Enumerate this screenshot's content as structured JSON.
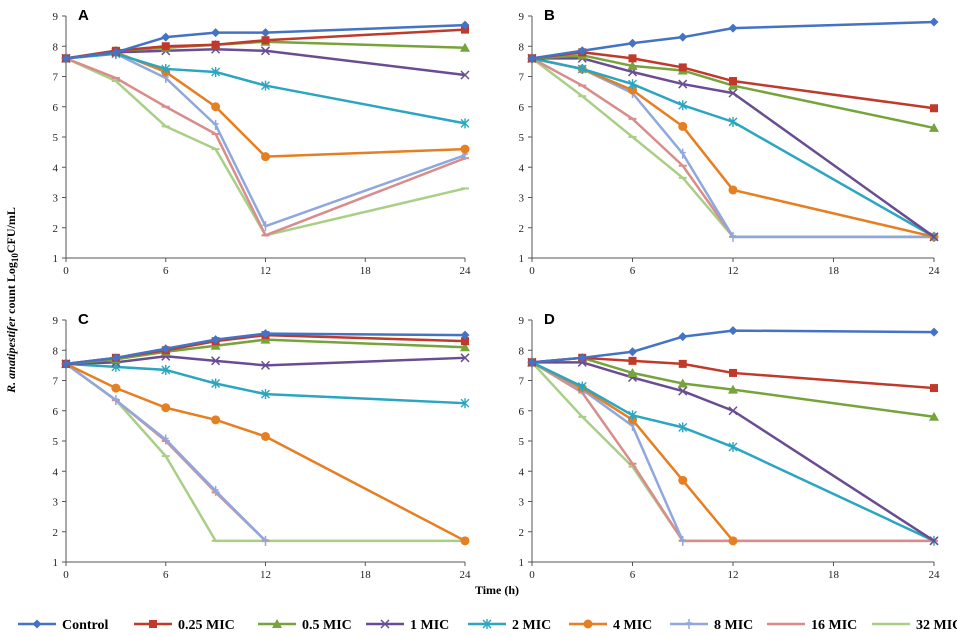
{
  "chart_data": {
    "type": "line",
    "ylabel_prefix": "R. anatipestifer",
    "ylabel_rest": " count Log",
    "ylabel_sub": "10",
    "ylabel_unit": "CFU/mL",
    "xlabel": "Time (h)",
    "x_ticks": [
      0,
      6,
      12,
      18,
      24
    ],
    "y_ticks": [
      1,
      2,
      3,
      4,
      5,
      6,
      7,
      8,
      9
    ],
    "xlim": [
      0,
      24
    ],
    "ylim": [
      1,
      9
    ],
    "series_styles": [
      {
        "name": "Control",
        "color": "#4472c4",
        "marker": "diamond"
      },
      {
        "name": "0.25 MIC",
        "color": "#c0392b",
        "marker": "square"
      },
      {
        "name": "0.5 MIC",
        "color": "#76a33a",
        "marker": "triangle"
      },
      {
        "name": "1 MIC",
        "color": "#6a4c93",
        "marker": "x"
      },
      {
        "name": "2 MIC",
        "color": "#2aa6c0",
        "marker": "star"
      },
      {
        "name": "4 MIC",
        "color": "#e67e22",
        "marker": "circle"
      },
      {
        "name": "8 MIC",
        "color": "#8fa8dc",
        "marker": "plus"
      },
      {
        "name": "16 MIC",
        "color": "#d98c8c",
        "marker": "dash"
      },
      {
        "name": "32 MIC",
        "color": "#a9cf86",
        "marker": "dash"
      }
    ],
    "panels": [
      {
        "label": "A",
        "x": [
          0,
          3,
          6,
          9,
          12,
          24
        ],
        "series": [
          {
            "name": "Control",
            "values": [
              7.6,
              7.8,
              8.3,
              8.45,
              8.45,
              8.7
            ]
          },
          {
            "name": "0.25 MIC",
            "values": [
              7.6,
              7.85,
              8.0,
              8.05,
              8.2,
              8.55
            ]
          },
          {
            "name": "0.5 MIC",
            "values": [
              7.6,
              7.85,
              7.95,
              8.05,
              8.15,
              7.95
            ]
          },
          {
            "name": "1 MIC",
            "values": [
              7.6,
              7.8,
              7.85,
              7.9,
              7.85,
              7.05
            ]
          },
          {
            "name": "2 MIC",
            "values": [
              7.6,
              7.75,
              7.25,
              7.15,
              6.7,
              5.45
            ]
          },
          {
            "name": "4 MIC",
            "values": [
              7.6,
              7.8,
              7.15,
              6.0,
              4.35,
              4.6
            ]
          },
          {
            "name": "8 MIC",
            "values": [
              7.6,
              7.75,
              6.95,
              5.4,
              2.05,
              4.4
            ]
          },
          {
            "name": "16 MIC",
            "values": [
              7.6,
              6.95,
              6.0,
              5.1,
              1.75,
              4.3
            ]
          },
          {
            "name": "32 MIC",
            "values": [
              7.6,
              6.85,
              5.35,
              4.6,
              1.75,
              3.3
            ]
          }
        ]
      },
      {
        "label": "B",
        "x": [
          0,
          3,
          6,
          9,
          12,
          24
        ],
        "series": [
          {
            "name": "Control",
            "values": [
              7.6,
              7.85,
              8.1,
              8.3,
              8.6,
              8.8
            ]
          },
          {
            "name": "0.25 MIC",
            "values": [
              7.6,
              7.8,
              7.6,
              7.3,
              6.85,
              5.95
            ]
          },
          {
            "name": "0.5 MIC",
            "values": [
              7.6,
              7.7,
              7.35,
              7.2,
              6.7,
              5.3
            ]
          },
          {
            "name": "1 MIC",
            "values": [
              7.6,
              7.6,
              7.15,
              6.75,
              6.45,
              1.7
            ]
          },
          {
            "name": "2 MIC",
            "values": [
              7.6,
              7.25,
              6.75,
              6.05,
              5.5,
              1.7
            ]
          },
          {
            "name": "4 MIC",
            "values": [
              7.6,
              7.25,
              6.55,
              5.35,
              3.25,
              1.7
            ]
          },
          {
            "name": "8 MIC",
            "values": [
              7.6,
              7.25,
              6.45,
              4.45,
              1.7,
              1.7
            ]
          },
          {
            "name": "16 MIC",
            "values": [
              7.6,
              6.7,
              5.6,
              4.05,
              1.7,
              1.7
            ]
          },
          {
            "name": "32 MIC",
            "values": [
              7.6,
              6.35,
              5.0,
              3.65,
              1.7,
              1.7
            ]
          }
        ]
      },
      {
        "label": "C",
        "x": [
          0,
          3,
          6,
          9,
          12,
          24
        ],
        "series": [
          {
            "name": "Control",
            "values": [
              7.55,
              7.75,
              8.05,
              8.35,
              8.55,
              8.5
            ]
          },
          {
            "name": "0.25 MIC",
            "values": [
              7.55,
              7.75,
              8.0,
              8.3,
              8.5,
              8.3
            ]
          },
          {
            "name": "0.5 MIC",
            "values": [
              7.55,
              7.7,
              7.95,
              8.15,
              8.35,
              8.1
            ]
          },
          {
            "name": "1 MIC",
            "values": [
              7.55,
              7.6,
              7.8,
              7.65,
              7.5,
              7.75
            ]
          },
          {
            "name": "2 MIC",
            "values": [
              7.55,
              7.45,
              7.35,
              6.9,
              6.55,
              6.25
            ]
          },
          {
            "name": "4 MIC",
            "values": [
              7.55,
              6.75,
              6.1,
              5.7,
              5.15,
              1.7
            ]
          },
          {
            "name": "8 MIC",
            "values": [
              7.55,
              6.35,
              5.05,
              3.35,
              1.7,
              null
            ]
          },
          {
            "name": "16 MIC",
            "values": [
              7.55,
              6.35,
              5.0,
              3.3,
              1.7,
              null
            ]
          },
          {
            "name": "32 MIC",
            "values": [
              7.55,
              6.35,
              4.5,
              1.7,
              1.7,
              1.7
            ]
          }
        ]
      },
      {
        "label": "D",
        "x": [
          0,
          3,
          6,
          9,
          12,
          24
        ],
        "series": [
          {
            "name": "Control",
            "values": [
              7.6,
              7.75,
              7.95,
              8.45,
              8.65,
              8.6
            ]
          },
          {
            "name": "0.25 MIC",
            "values": [
              7.6,
              7.75,
              7.65,
              7.55,
              7.25,
              6.75
            ]
          },
          {
            "name": "0.5 MIC",
            "values": [
              7.6,
              7.75,
              7.25,
              6.9,
              6.7,
              5.8
            ]
          },
          {
            "name": "1 MIC",
            "values": [
              7.6,
              7.6,
              7.1,
              6.65,
              6.0,
              1.7
            ]
          },
          {
            "name": "2 MIC",
            "values": [
              7.6,
              6.8,
              5.85,
              5.45,
              4.8,
              1.7
            ]
          },
          {
            "name": "4 MIC",
            "values": [
              7.6,
              6.75,
              5.7,
              3.7,
              1.7,
              null
            ]
          },
          {
            "name": "8 MIC",
            "values": [
              7.6,
              6.7,
              5.5,
              1.7,
              null,
              null
            ]
          },
          {
            "name": "16 MIC",
            "values": [
              7.6,
              6.6,
              4.25,
              1.7,
              1.7,
              1.7
            ]
          },
          {
            "name": "32 MIC",
            "values": [
              7.6,
              5.8,
              4.15,
              1.7,
              1.7,
              1.7
            ]
          }
        ]
      }
    ]
  }
}
